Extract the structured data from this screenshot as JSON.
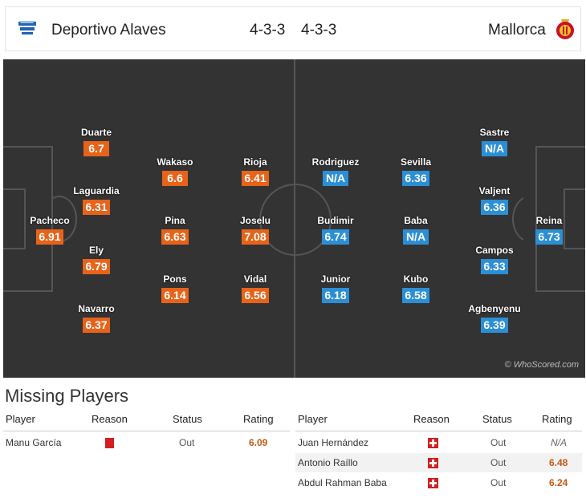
{
  "header": {
    "home_team": "Deportivo Alaves",
    "home_formation": "4-3-3",
    "away_formation": "4-3-3",
    "away_team": "Mallorca"
  },
  "pitch": {
    "watermark": "© WhoScored.com",
    "home_players": [
      {
        "name": "Pacheco",
        "rating": "6.91"
      },
      {
        "name": "Duarte",
        "rating": "6.7"
      },
      {
        "name": "Laguardia",
        "rating": "6.31"
      },
      {
        "name": "Ely",
        "rating": "6.79"
      },
      {
        "name": "Navarro",
        "rating": "6.37"
      },
      {
        "name": "Wakaso",
        "rating": "6.6"
      },
      {
        "name": "Pina",
        "rating": "6.63"
      },
      {
        "name": "Pons",
        "rating": "6.14"
      },
      {
        "name": "Rioja",
        "rating": "6.41"
      },
      {
        "name": "Joselu",
        "rating": "7.08"
      },
      {
        "name": "Vidal",
        "rating": "6.56"
      }
    ],
    "away_players": [
      {
        "name": "Rodriguez",
        "rating": "N/A"
      },
      {
        "name": "Budimir",
        "rating": "6.74"
      },
      {
        "name": "Junior",
        "rating": "6.18"
      },
      {
        "name": "Sevilla",
        "rating": "6.36"
      },
      {
        "name": "Baba",
        "rating": "N/A"
      },
      {
        "name": "Kubo",
        "rating": "6.58"
      },
      {
        "name": "Sastre",
        "rating": "N/A"
      },
      {
        "name": "Valjent",
        "rating": "6.36"
      },
      {
        "name": "Campos",
        "rating": "6.33"
      },
      {
        "name": "Agbenyenu",
        "rating": "6.39"
      },
      {
        "name": "Reina",
        "rating": "6.73"
      }
    ]
  },
  "missing": {
    "title": "Missing Players",
    "columns": {
      "player": "Player",
      "reason": "Reason",
      "status": "Status",
      "rating": "Rating"
    },
    "home": [
      {
        "player": "Manu García",
        "reason": "red-card-icon",
        "status": "Out",
        "rating": "6.09"
      }
    ],
    "away": [
      {
        "player": "Juan Hernández",
        "reason": "injury-icon",
        "status": "Out",
        "rating": "N/A"
      },
      {
        "player": "Antonio Raíllo",
        "reason": "injury-icon",
        "status": "Out",
        "rating": "6.48"
      },
      {
        "player": "Abdul Rahman Baba",
        "reason": "injury-icon",
        "status": "Out",
        "rating": "6.24"
      }
    ]
  },
  "colors": {
    "home_rating": "#e8631a",
    "away_rating": "#2c8fd6",
    "pitch": "#333333",
    "injury": "#d21f1f"
  }
}
